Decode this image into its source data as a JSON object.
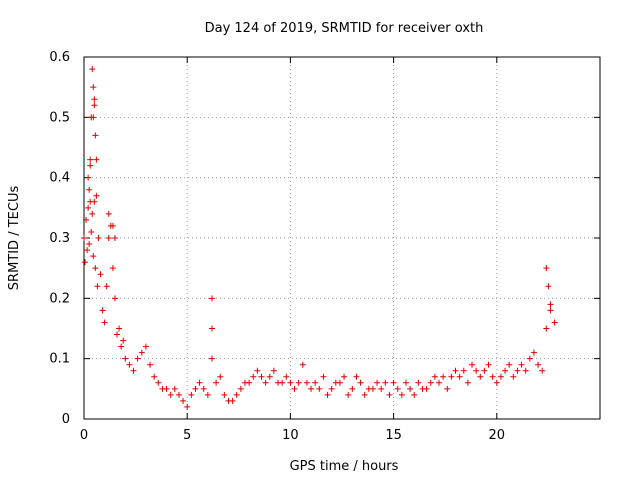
{
  "chart_data": {
    "type": "scatter",
    "title": "Day 124 of 2019, SRMTID for receiver oxth",
    "xlabel": "GPS time / hours",
    "ylabel": "SRMTID / TECUs",
    "xlim": [
      0,
      25
    ],
    "ylim": [
      0,
      0.6
    ],
    "xticks": [
      0,
      5,
      10,
      15,
      20
    ],
    "yticks": [
      0,
      0.1,
      0.2,
      0.3,
      0.4,
      0.5,
      0.6
    ],
    "xtick_labels": [
      "0",
      "5",
      "10",
      "15",
      "20"
    ],
    "ytick_labels": [
      "0",
      "0.1",
      "0.2",
      "0.3",
      "0.4",
      "0.5",
      "0.6"
    ],
    "grid": true,
    "marker": "+",
    "color": "#e00000",
    "series": [
      {
        "name": "oxth",
        "x": [
          0.0,
          0.05,
          0.1,
          0.15,
          0.2,
          0.25,
          0.3,
          0.35,
          0.4,
          0.45,
          0.5,
          0.55,
          0.6,
          0.65,
          0.7,
          0.8,
          0.9,
          1.0,
          1.1,
          1.2,
          1.3,
          1.4,
          1.5,
          1.6,
          1.7,
          1.8,
          1.9,
          2.0,
          2.2,
          2.4,
          2.6,
          2.8,
          3.0,
          3.2,
          3.4,
          3.6,
          3.8,
          4.0,
          4.2,
          4.4,
          4.6,
          4.8,
          5.0,
          5.2,
          5.4,
          5.6,
          5.8,
          6.0,
          6.2,
          6.4,
          6.6,
          6.8,
          7.0,
          7.2,
          7.4,
          7.6,
          7.8,
          8.0,
          8.2,
          8.4,
          8.6,
          8.8,
          9.0,
          9.2,
          9.4,
          9.6,
          9.8,
          10.0,
          10.2,
          10.4,
          10.6,
          10.8,
          11.0,
          11.2,
          11.4,
          11.6,
          11.8,
          12.0,
          12.2,
          12.4,
          12.6,
          12.8,
          13.0,
          13.2,
          13.4,
          13.6,
          13.8,
          14.0,
          14.2,
          14.4,
          14.6,
          14.8,
          15.0,
          15.2,
          15.4,
          15.6,
          15.8,
          16.0,
          16.2,
          16.4,
          16.6,
          16.8,
          17.0,
          17.2,
          17.4,
          17.6,
          17.8,
          18.0,
          18.2,
          18.4,
          18.6,
          18.8,
          19.0,
          19.2,
          19.4,
          19.6,
          19.8,
          20.0,
          20.2,
          20.4,
          20.6,
          20.8,
          21.0,
          21.2,
          21.4,
          21.6,
          21.8,
          22.0,
          22.2,
          22.4,
          22.6,
          22.8,
          0.3,
          0.35,
          0.4,
          0.45,
          0.5,
          0.55,
          0.6,
          0.2,
          0.25,
          0.3,
          0.45,
          0.5,
          1.2,
          1.4,
          1.5,
          6.2,
          6.2,
          22.4,
          22.5,
          22.6
        ],
        "y": [
          0.3,
          0.26,
          0.33,
          0.28,
          0.35,
          0.29,
          0.36,
          0.31,
          0.34,
          0.27,
          0.36,
          0.25,
          0.37,
          0.22,
          0.3,
          0.24,
          0.18,
          0.16,
          0.22,
          0.3,
          0.32,
          0.25,
          0.2,
          0.14,
          0.15,
          0.12,
          0.13,
          0.1,
          0.09,
          0.08,
          0.1,
          0.11,
          0.12,
          0.09,
          0.07,
          0.06,
          0.05,
          0.05,
          0.04,
          0.05,
          0.04,
          0.03,
          0.02,
          0.04,
          0.05,
          0.06,
          0.05,
          0.04,
          0.1,
          0.06,
          0.07,
          0.04,
          0.03,
          0.03,
          0.04,
          0.05,
          0.06,
          0.06,
          0.07,
          0.08,
          0.07,
          0.06,
          0.07,
          0.08,
          0.06,
          0.06,
          0.07,
          0.06,
          0.05,
          0.06,
          0.09,
          0.06,
          0.05,
          0.06,
          0.05,
          0.07,
          0.04,
          0.05,
          0.06,
          0.06,
          0.07,
          0.04,
          0.05,
          0.07,
          0.06,
          0.04,
          0.05,
          0.05,
          0.06,
          0.05,
          0.06,
          0.04,
          0.06,
          0.05,
          0.04,
          0.06,
          0.05,
          0.04,
          0.06,
          0.05,
          0.05,
          0.06,
          0.07,
          0.06,
          0.07,
          0.05,
          0.07,
          0.08,
          0.07,
          0.08,
          0.06,
          0.09,
          0.08,
          0.07,
          0.08,
          0.09,
          0.07,
          0.06,
          0.07,
          0.08,
          0.09,
          0.07,
          0.08,
          0.09,
          0.08,
          0.1,
          0.11,
          0.09,
          0.08,
          0.15,
          0.18,
          0.16,
          0.43,
          0.5,
          0.58,
          0.55,
          0.53,
          0.47,
          0.43,
          0.4,
          0.38,
          0.42,
          0.5,
          0.52,
          0.34,
          0.32,
          0.3,
          0.2,
          0.15,
          0.25,
          0.22,
          0.19
        ]
      }
    ]
  }
}
